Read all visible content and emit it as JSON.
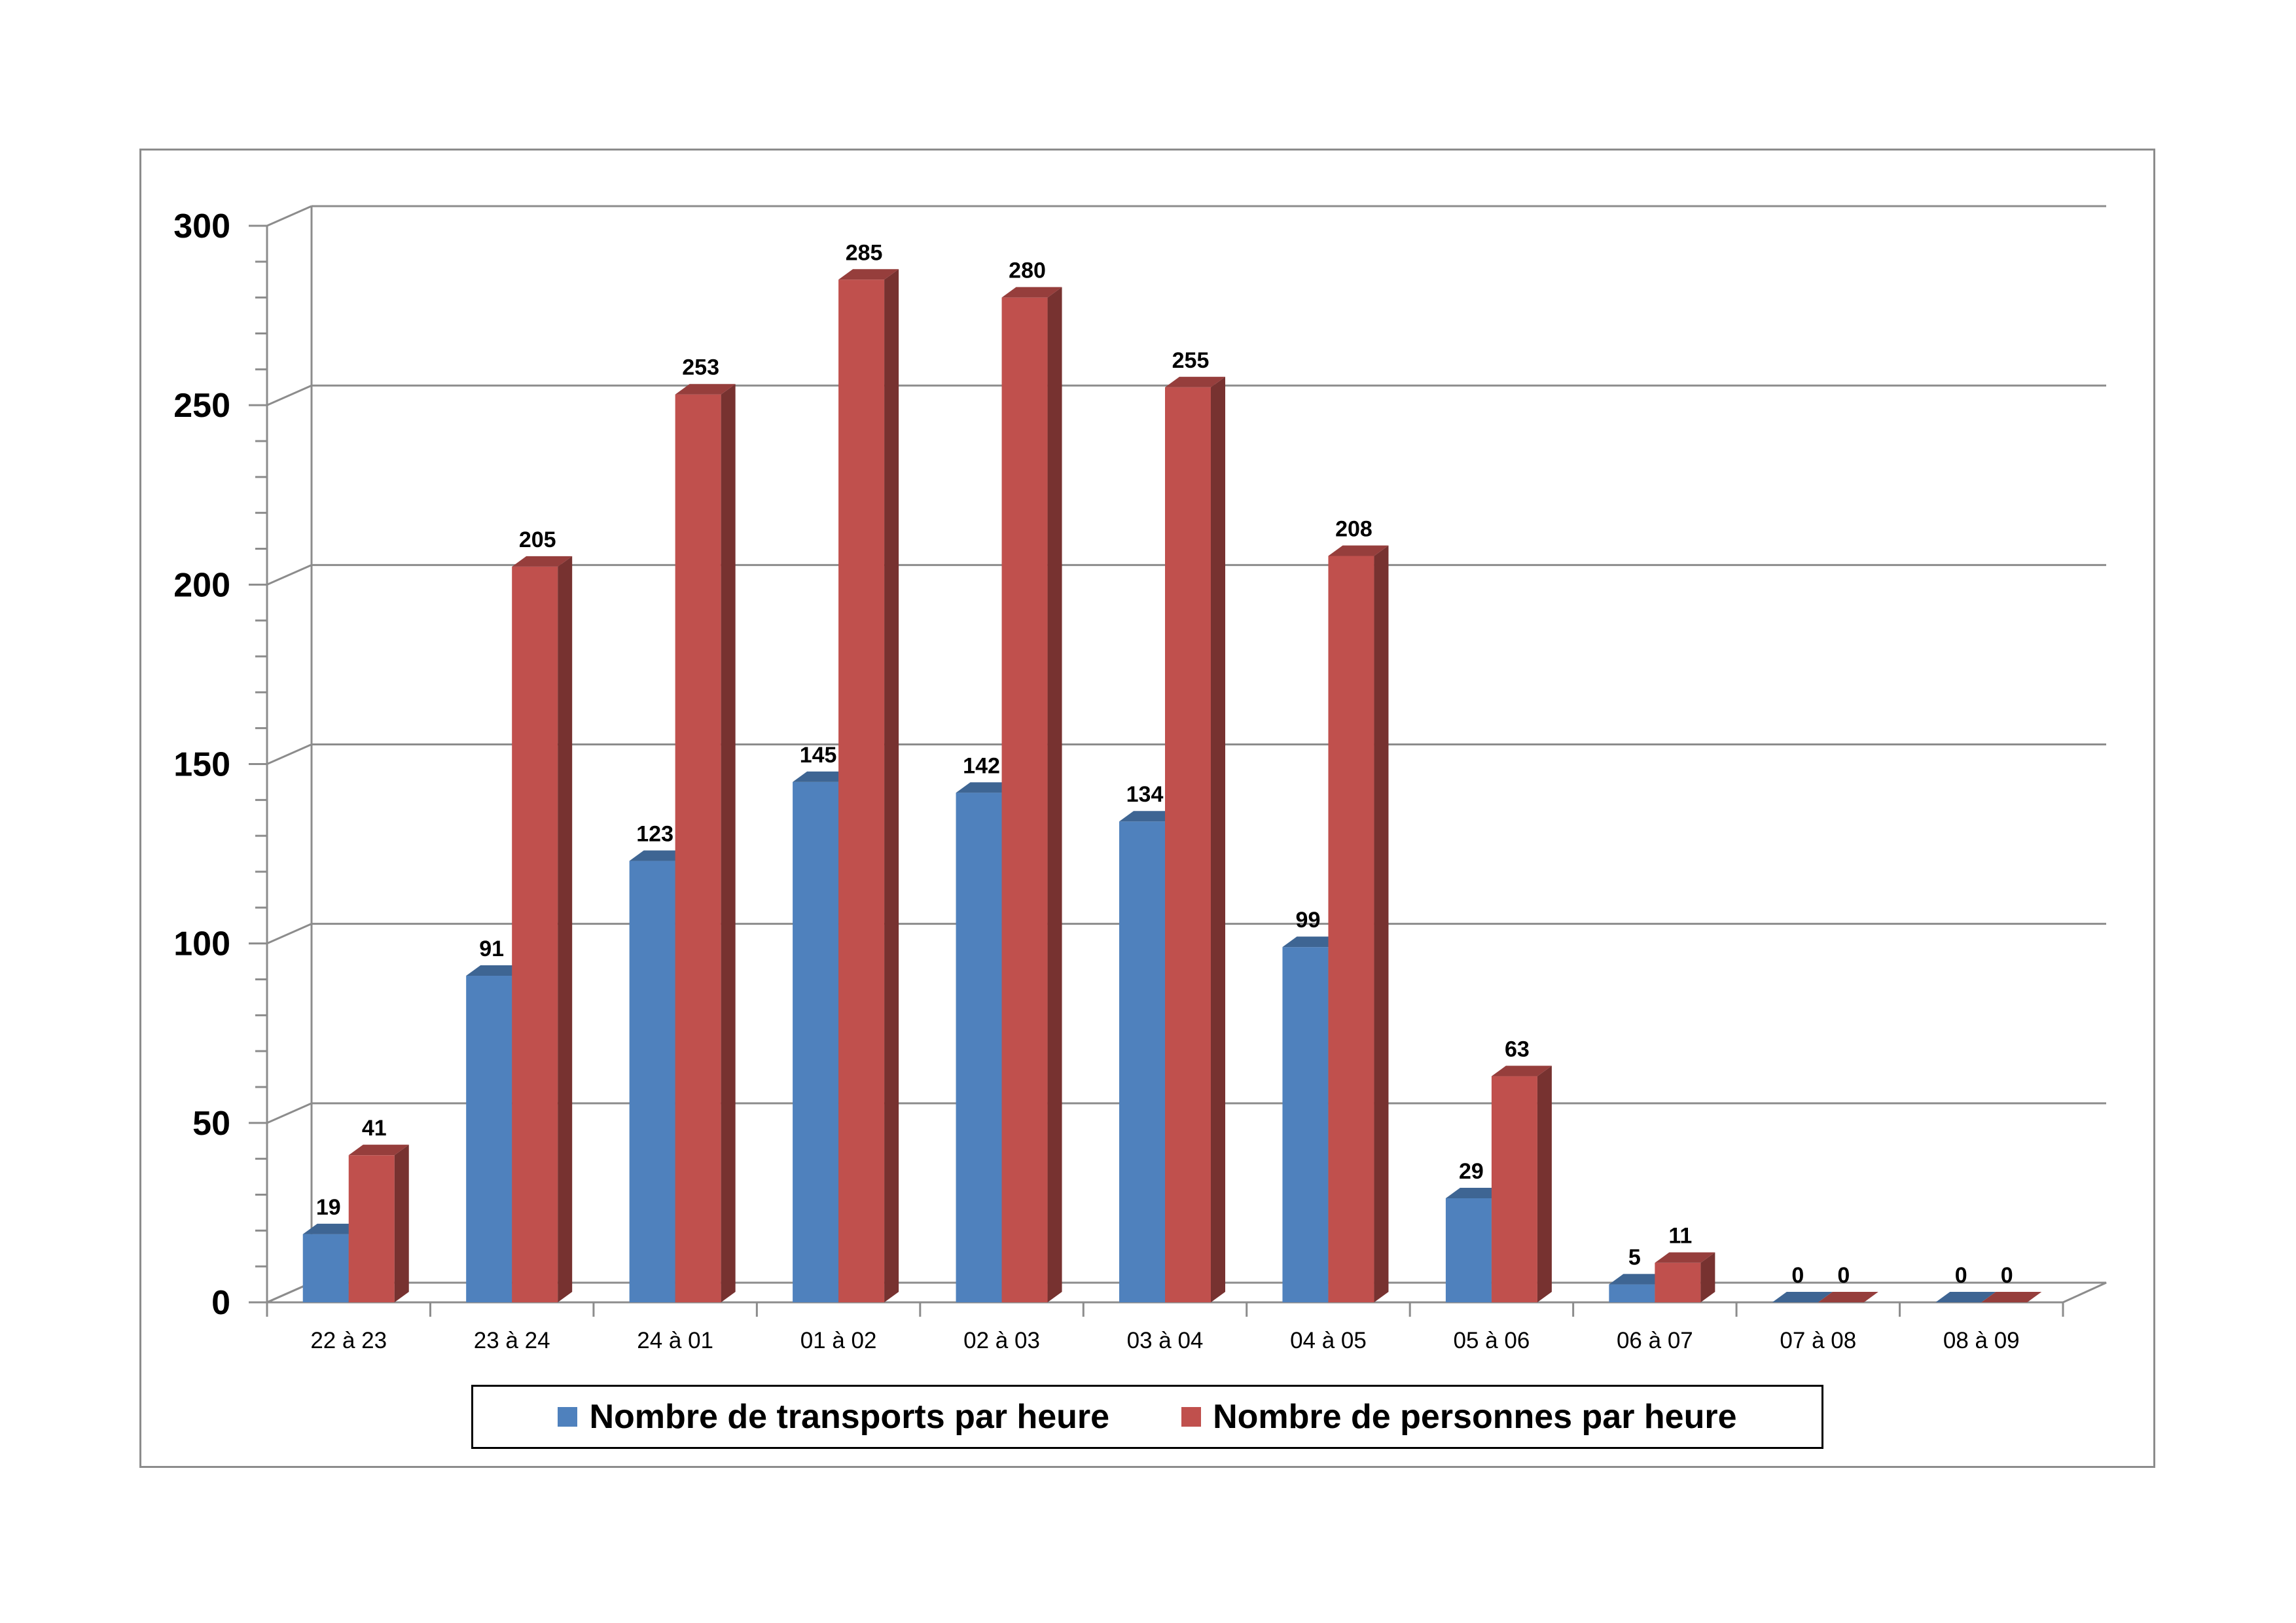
{
  "chart_data": {
    "type": "bar",
    "categories": [
      "22 à 23",
      "23 à 24",
      "24 à 01",
      "01 à 02",
      "02 à 03",
      "03 à 04",
      "04 à 05",
      "05 à 06",
      "06 à 07",
      "07 à 08",
      "08 à 09"
    ],
    "series": [
      {
        "name": "Nombre de transports par heure",
        "values": [
          19,
          91,
          123,
          145,
          142,
          134,
          99,
          29,
          5,
          0,
          0
        ],
        "color": "#4f81bd"
      },
      {
        "name": "Nombre de personnes par heure",
        "values": [
          41,
          205,
          253,
          285,
          280,
          255,
          208,
          63,
          11,
          0,
          0
        ],
        "color": "#c0504d"
      }
    ],
    "yticks": [
      "0",
      "50",
      "100",
      "150",
      "200",
      "250",
      "300"
    ],
    "ylim": [
      0,
      300
    ],
    "grid": true,
    "legend_position": "bottom",
    "style": "3d-clustered-column"
  }
}
